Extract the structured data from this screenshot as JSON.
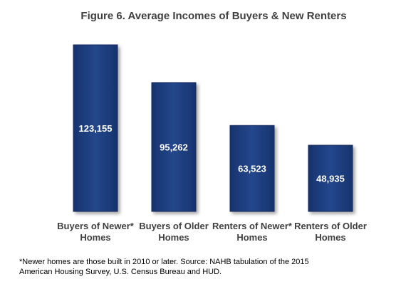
{
  "chart_data": {
    "type": "bar",
    "title": "Figure 6.  Average Incomes of Buyers & New Renters",
    "categories": [
      [
        "Buyers of Newer*",
        "Homes"
      ],
      [
        "Buyers of Older",
        "Homes"
      ],
      [
        "Renters of Newer*",
        "Homes"
      ],
      [
        "Renters of Older",
        "Homes"
      ]
    ],
    "values": [
      123155,
      95262,
      63523,
      48935
    ],
    "value_labels": [
      "123,155",
      "95,262",
      "63,523",
      "48,935"
    ],
    "ylim": [
      0,
      130000
    ],
    "grid": false,
    "legend": "none",
    "bar_color": "#1f3d7a",
    "bar_border_color": "#14295a"
  },
  "footnote": {
    "line1": "*Newer homes are those built in 2010 or later.    Source: NAHB tabulation of the 2015",
    "line2": "American Housing Survey,  U.S. Census Bureau and HUD."
  }
}
